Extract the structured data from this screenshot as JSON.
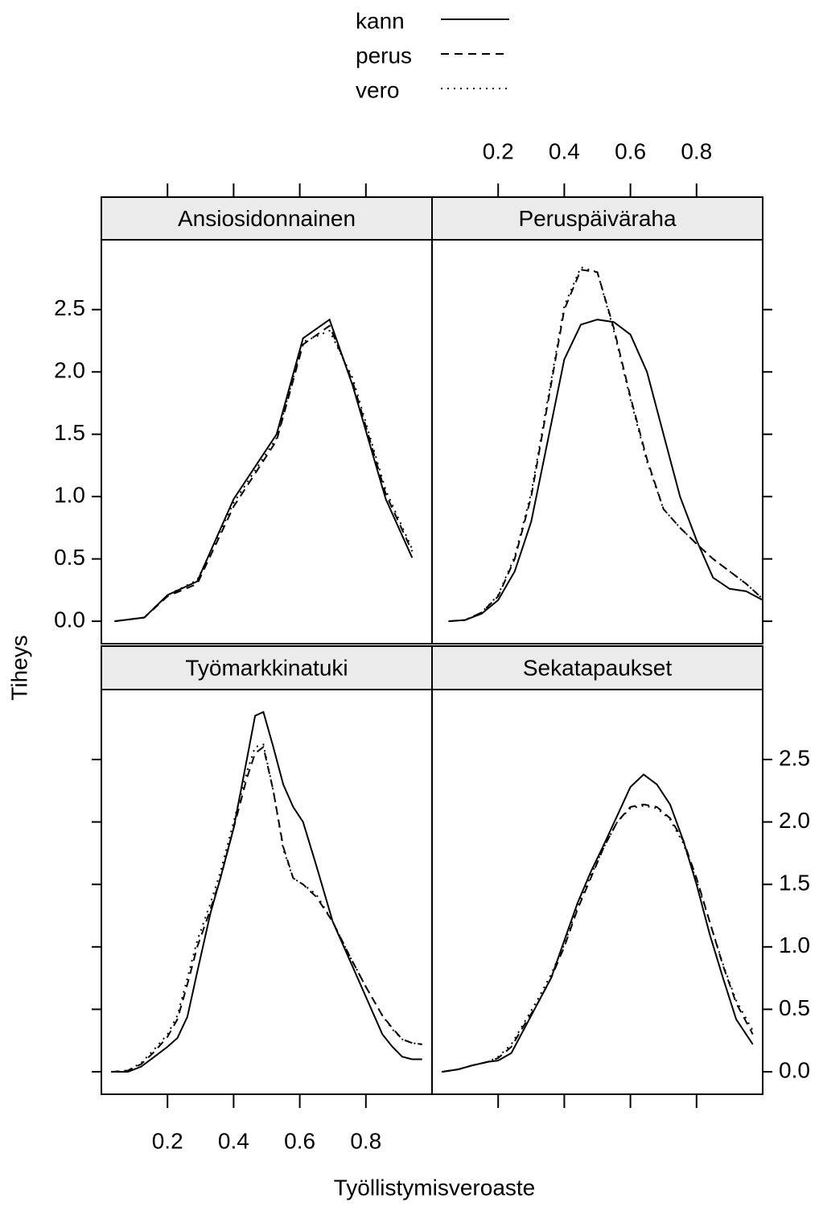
{
  "xlabel": "Työllistymisveroaste",
  "ylabel": "Tiheys",
  "chart_data": [
    {
      "type": "line",
      "title": "Ansiosidonnainen",
      "x": [
        0.04,
        0.13,
        0.2,
        0.29,
        0.4,
        0.53,
        0.61,
        0.69,
        0.76,
        0.86,
        0.94
      ],
      "series": [
        {
          "name": "kann",
          "color": "#000000",
          "linestyle": "solid",
          "values": [
            0,
            0.03,
            0.21,
            0.32,
            0.98,
            1.5,
            2.27,
            2.42,
            1.89,
            0.98,
            0.51
          ]
        },
        {
          "name": "perus",
          "color": "#000000",
          "linestyle": "dashed",
          "values": [
            0,
            0.03,
            0.2,
            0.3,
            0.92,
            1.45,
            2.22,
            2.37,
            1.92,
            1.02,
            0.56
          ]
        },
        {
          "name": "vero",
          "color": "#000000",
          "linestyle": "dotted",
          "values": [
            0,
            0.03,
            0.21,
            0.33,
            0.95,
            1.47,
            2.24,
            2.33,
            1.95,
            1.05,
            0.58
          ]
        }
      ],
      "xlim": [
        0,
        1
      ],
      "xticks": [
        0.2,
        0.4,
        0.6,
        0.8
      ],
      "ylim": [
        -0.18,
        3.06
      ],
      "yticks": [
        {
          "value": 0,
          "label": "0.0"
        },
        0.5,
        {
          "value": 1,
          "label": "1.0"
        },
        1.5,
        {
          "value": 2,
          "label": "2.0"
        },
        2.5
      ]
    },
    {
      "type": "line",
      "title": "Peruspäiväraha",
      "x": [
        0.05,
        0.1,
        0.15,
        0.2,
        0.25,
        0.3,
        0.35,
        0.4,
        0.45,
        0.5,
        0.55,
        0.6,
        0.65,
        0.7,
        0.75,
        0.8,
        0.85,
        0.9,
        0.95,
        1.0
      ],
      "series": [
        {
          "name": "kann",
          "color": "#000000",
          "linestyle": "solid",
          "values": [
            0,
            0.01,
            0.06,
            0.17,
            0.4,
            0.8,
            1.45,
            2.1,
            2.38,
            2.42,
            2.4,
            2.3,
            2.0,
            1.5,
            1.0,
            0.65,
            0.35,
            0.26,
            0.24,
            0.17
          ]
        },
        {
          "name": "perus",
          "color": "#000000",
          "linestyle": "dashed",
          "values": [
            0,
            0.01,
            0.07,
            0.2,
            0.5,
            1.0,
            1.75,
            2.5,
            2.82,
            2.8,
            2.35,
            1.8,
            1.3,
            0.9,
            0.75,
            0.62,
            0.5,
            0.4,
            0.3,
            0.18
          ]
        },
        {
          "name": "vero",
          "color": "#000000",
          "linestyle": "dotted",
          "values": [
            0,
            0.01,
            0.07,
            0.21,
            0.52,
            1.03,
            1.78,
            2.53,
            2.84,
            2.8,
            2.33,
            1.78,
            1.28,
            0.9,
            0.75,
            0.62,
            0.5,
            0.4,
            0.3,
            0.18
          ]
        }
      ],
      "xlim": [
        0,
        1
      ],
      "xticks": [
        0.2,
        0.4,
        0.6,
        0.8
      ],
      "ylim": [
        -0.18,
        3.06
      ],
      "yticks": [
        {
          "value": 0,
          "label": "0.0"
        },
        0.5,
        {
          "value": 1,
          "label": "1.0"
        },
        1.5,
        {
          "value": 2,
          "label": "2.0"
        },
        2.5
      ]
    },
    {
      "type": "line",
      "title": "Työmarkkinatuki",
      "x": [
        0.03,
        0.08,
        0.12,
        0.16,
        0.2,
        0.23,
        0.26,
        0.29,
        0.33,
        0.36,
        0.4,
        0.44,
        0.465,
        0.49,
        0.52,
        0.55,
        0.58,
        0.61,
        0.65,
        0.7,
        0.75,
        0.8,
        0.85,
        0.88,
        0.91,
        0.94,
        0.97
      ],
      "series": [
        {
          "name": "kann",
          "color": "#000000",
          "linestyle": "solid",
          "values": [
            0,
            0,
            0.04,
            0.12,
            0.2,
            0.27,
            0.44,
            0.8,
            1.27,
            1.55,
            1.95,
            2.5,
            2.85,
            2.88,
            2.6,
            2.3,
            2.12,
            2.0,
            1.65,
            1.2,
            0.9,
            0.6,
            0.3,
            0.2,
            0.12,
            0.1,
            0.1
          ]
        },
        {
          "name": "perus",
          "color": "#000000",
          "linestyle": "dashed",
          "values": [
            0,
            0.01,
            0.06,
            0.16,
            0.28,
            0.42,
            0.7,
            1.0,
            1.3,
            1.55,
            1.95,
            2.35,
            2.55,
            2.6,
            2.25,
            1.8,
            1.55,
            1.5,
            1.4,
            1.2,
            0.93,
            0.68,
            0.45,
            0.35,
            0.26,
            0.23,
            0.22
          ]
        },
        {
          "name": "vero",
          "color": "#000000",
          "linestyle": "dotted",
          "values": [
            0,
            0.01,
            0.07,
            0.18,
            0.3,
            0.45,
            0.75,
            1.05,
            1.35,
            1.6,
            2.0,
            2.4,
            2.6,
            2.62,
            2.25,
            1.78,
            1.55,
            1.5,
            1.42,
            1.2,
            0.93,
            0.68,
            0.45,
            0.34,
            0.26,
            0.23,
            0.22
          ]
        }
      ],
      "xlim": [
        0,
        1
      ],
      "xticks": [
        0.2,
        0.4,
        0.6,
        0.8
      ],
      "ylim": [
        -0.18,
        3.06
      ],
      "yticks": [
        {
          "value": 0,
          "label": "0.0"
        },
        0.5,
        {
          "value": 1,
          "label": "1.0"
        },
        1.5,
        {
          "value": 2,
          "label": "2.0"
        },
        2.5
      ]
    },
    {
      "type": "line",
      "title": "Sekatapaukset",
      "x": [
        0.03,
        0.08,
        0.12,
        0.17,
        0.2,
        0.24,
        0.28,
        0.32,
        0.36,
        0.4,
        0.44,
        0.48,
        0.52,
        0.56,
        0.6,
        0.64,
        0.68,
        0.72,
        0.76,
        0.8,
        0.84,
        0.88,
        0.92,
        0.97
      ],
      "series": [
        {
          "name": "kann",
          "color": "#000000",
          "linestyle": "solid",
          "values": [
            0,
            0.02,
            0.05,
            0.08,
            0.09,
            0.15,
            0.35,
            0.55,
            0.75,
            1.05,
            1.35,
            1.6,
            1.82,
            2.05,
            2.28,
            2.38,
            2.3,
            2.14,
            1.85,
            1.5,
            1.1,
            0.75,
            0.42,
            0.22
          ]
        },
        {
          "name": "perus",
          "color": "#000000",
          "linestyle": "dashed",
          "values": [
            0,
            0.02,
            0.05,
            0.08,
            0.11,
            0.2,
            0.38,
            0.55,
            0.75,
            1.0,
            1.3,
            1.55,
            1.8,
            2.0,
            2.12,
            2.14,
            2.12,
            2.03,
            1.85,
            1.55,
            1.2,
            0.85,
            0.55,
            0.3
          ]
        },
        {
          "name": "vero",
          "color": "#000000",
          "linestyle": "dotted",
          "values": [
            0,
            0.02,
            0.05,
            0.08,
            0.12,
            0.22,
            0.4,
            0.58,
            0.78,
            1.02,
            1.32,
            1.57,
            1.8,
            2.0,
            2.11,
            2.13,
            2.11,
            2.02,
            1.83,
            1.53,
            1.2,
            0.86,
            0.57,
            0.33
          ]
        }
      ],
      "xlim": [
        0,
        1
      ],
      "xticks": [
        0.2,
        0.4,
        0.6,
        0.8
      ],
      "ylim": [
        -0.18,
        3.06
      ],
      "yticks": [
        {
          "value": 0,
          "label": "0.0"
        },
        0.5,
        {
          "value": 1,
          "label": "1.0"
        },
        1.5,
        {
          "value": 2,
          "label": "2.0"
        },
        2.5
      ]
    }
  ]
}
